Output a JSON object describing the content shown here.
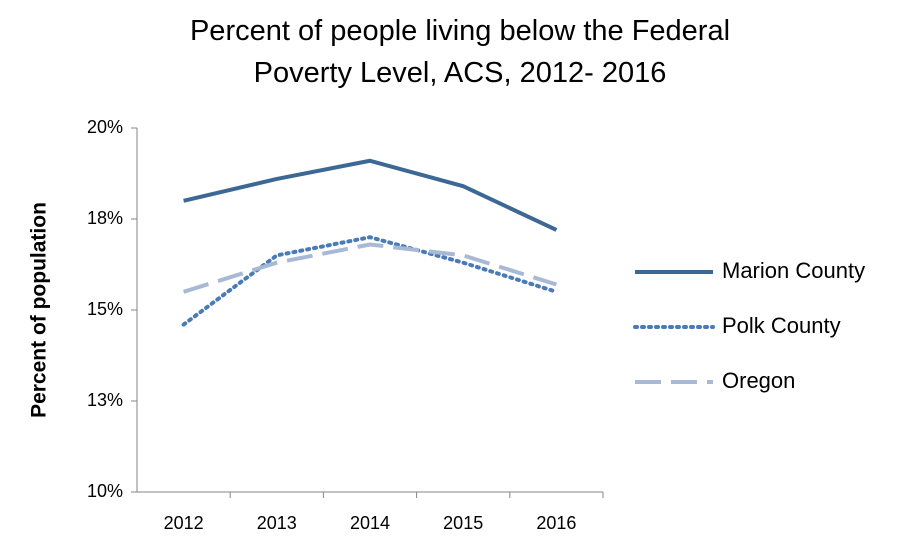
{
  "chart_data": {
    "type": "line",
    "title": "Percent of people living below the Federal Poverty Level, ACS, 2012- 2016",
    "y_label": "Percent of population",
    "categories": [
      "2012",
      "2013",
      "2014",
      "2015",
      "2016"
    ],
    "series": [
      {
        "name": "Marion County",
        "color": "#3d6896",
        "dash": "solid",
        "values": [
          18.0,
          18.6,
          19.1,
          18.4,
          17.2
        ]
      },
      {
        "name": "Polk County",
        "color": "#4a7bb7",
        "dash": "dotted",
        "values": [
          14.6,
          16.5,
          17.0,
          16.3,
          15.5
        ]
      },
      {
        "name": "Oregon",
        "color": "#a8b9d6",
        "dash": "dashed",
        "values": [
          15.5,
          16.3,
          16.8,
          16.5,
          15.7
        ]
      }
    ],
    "ylim": [
      10,
      20
    ],
    "yticks": [
      {
        "value": 10,
        "label": "10%"
      },
      {
        "value": 12.5,
        "label": "13%"
      },
      {
        "value": 15,
        "label": "15%"
      },
      {
        "value": 17.5,
        "label": "18%"
      },
      {
        "value": 20,
        "label": "20%"
      }
    ],
    "legend": "right"
  }
}
